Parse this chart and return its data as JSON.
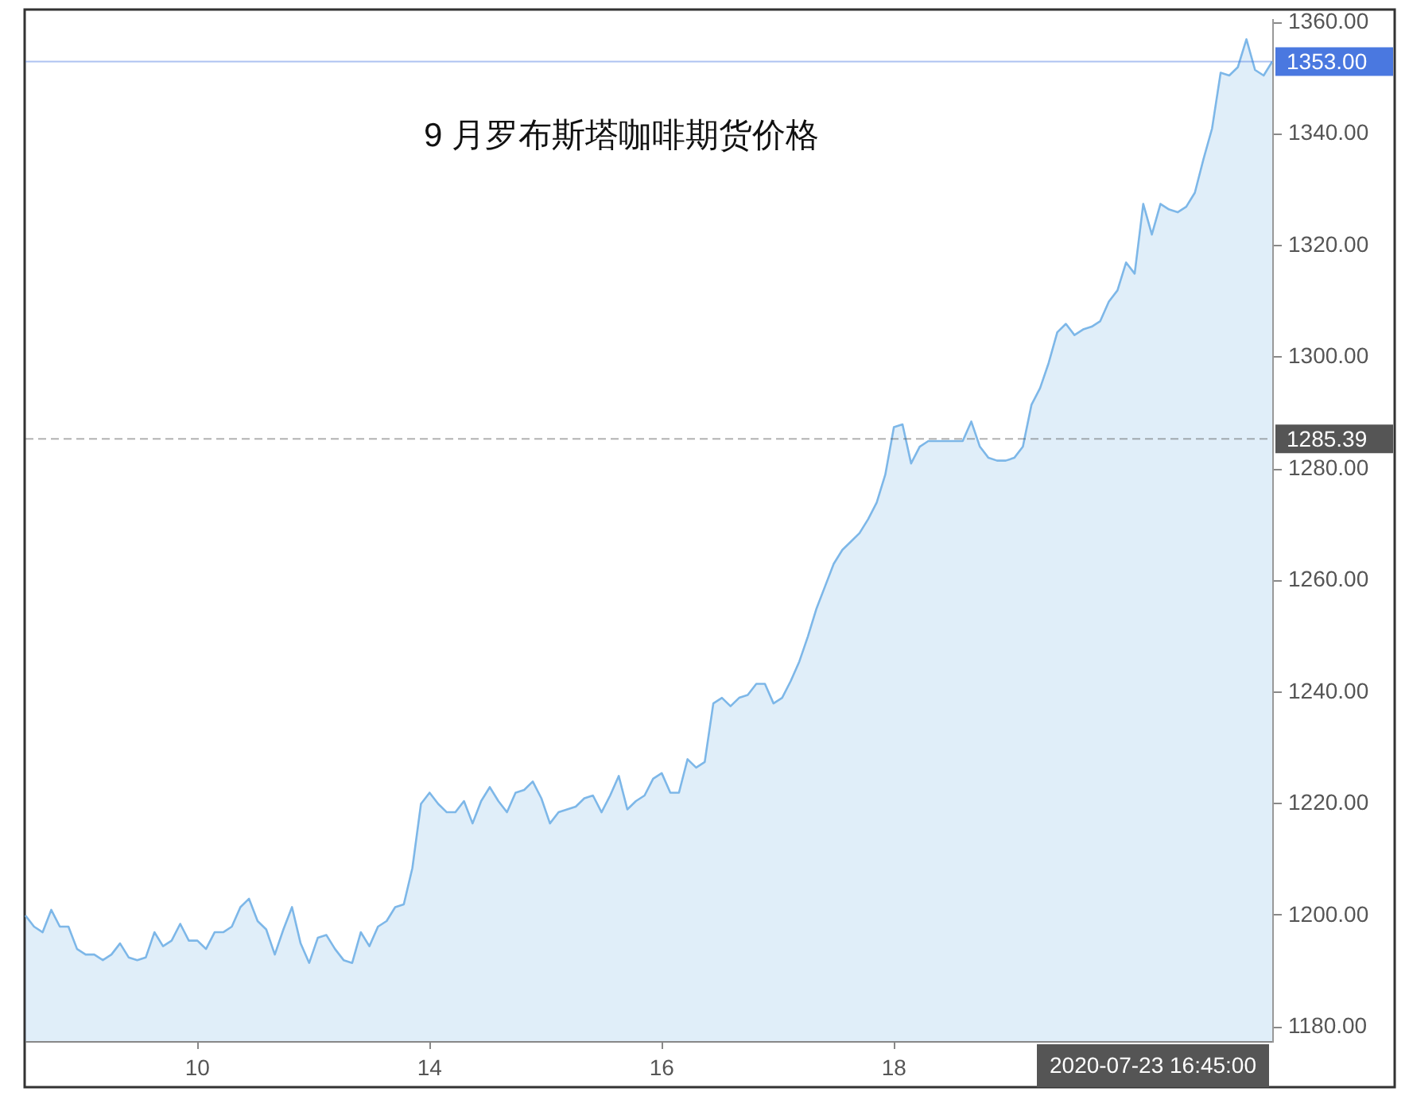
{
  "chart_data": {
    "type": "area",
    "title": "9 月罗布斯塔咖啡期货价格",
    "categories": [
      null,
      null,
      null,
      null,
      null,
      null,
      null,
      null,
      null,
      null,
      null,
      null,
      null,
      null,
      null,
      null,
      null,
      null,
      null,
      null,
      "10",
      null,
      null,
      null,
      null,
      null,
      null,
      null,
      null,
      null,
      null,
      null,
      null,
      null,
      null,
      null,
      null,
      null,
      null,
      null,
      null,
      null,
      null,
      null,
      null,
      null,
      null,
      "14",
      null,
      null,
      null,
      null,
      null,
      null,
      null,
      null,
      null,
      null,
      null,
      null,
      null,
      null,
      null,
      null,
      null,
      null,
      null,
      null,
      null,
      null,
      null,
      null,
      null,
      null,
      "16",
      null,
      null,
      null,
      null,
      null,
      null,
      null,
      null,
      null,
      null,
      null,
      null,
      null,
      null,
      null,
      null,
      null,
      null,
      null,
      null,
      null,
      null,
      null,
      null,
      null,
      null,
      "18",
      null,
      null,
      null,
      null,
      null,
      null,
      null,
      null,
      null,
      null,
      null,
      null,
      null,
      null,
      null,
      null,
      null,
      null,
      null,
      null,
      null,
      null,
      null,
      null,
      null,
      null,
      null,
      null,
      null,
      null,
      null,
      null,
      null,
      null,
      null,
      null,
      null,
      null,
      null,
      null,
      null,
      null,
      null,
      null
    ],
    "values": [
      1200,
      1198,
      1197,
      1201,
      1198,
      1198,
      1194,
      1193,
      1193,
      1192,
      1193,
      1195,
      1192.5,
      1192,
      1192.5,
      1197,
      1194.5,
      1195.5,
      1198.5,
      1195.5,
      1195.5,
      1194,
      1197,
      1197,
      1198,
      1201.5,
      1203,
      1199,
      1197.5,
      1193,
      1197.5,
      1201.5,
      1195,
      1191.5,
      1196,
      1196.5,
      1194,
      1192,
      1191.5,
      1197,
      1194.5,
      1198,
      1199,
      1201.5,
      1202,
      1208.5,
      1220,
      1222,
      1220,
      1218.5,
      1218.5,
      1220.5,
      1216.5,
      1220.5,
      1223,
      1220.5,
      1218.5,
      1222,
      1222.5,
      1224,
      1221,
      1216.5,
      1218.5,
      1219,
      1219.5,
      1221,
      1221.5,
      1218.5,
      1221.5,
      1225,
      1219,
      1220.5,
      1221.5,
      1224.5,
      1225.5,
      1222,
      1222,
      1228,
      1226.5,
      1227.5,
      1238,
      1239,
      1237.5,
      1239,
      1239.5,
      1241.5,
      1241.5,
      1238,
      1239,
      1242,
      1245.5,
      1250,
      1255,
      1259,
      1263,
      1265.5,
      1267,
      1268.5,
      1271,
      1274,
      1279,
      1287.5,
      1288,
      1281,
      1284,
      1285,
      1285,
      1285,
      1285,
      1285,
      1288.5,
      1284,
      1282,
      1281.5,
      1281.5,
      1282,
      1284,
      1291.5,
      1294.5,
      1299,
      1304.5,
      1306,
      1304,
      1305,
      1305.5,
      1306.5,
      1310,
      1312,
      1317,
      1315,
      1327.5,
      1322,
      1327.5,
      1326.5,
      1326,
      1327,
      1329.5,
      1335.5,
      1341,
      1351,
      1350.5,
      1352,
      1357,
      1351.5,
      1350.5,
      1353
    ],
    "color": "#7db7e8",
    "ylim": [
      1177.5,
      1360.5
    ],
    "yticks": [
      {
        "value": 1180,
        "label": "1180.00"
      },
      {
        "value": 1200,
        "label": "1200.00"
      },
      {
        "value": 1220,
        "label": "1220.00"
      },
      {
        "value": 1240,
        "label": "1240.00"
      },
      {
        "value": 1260,
        "label": "1260.00"
      },
      {
        "value": 1280,
        "label": "1280.00"
      },
      {
        "value": 1300,
        "label": "1300.00"
      },
      {
        "value": 1320,
        "label": "1320.00"
      },
      {
        "value": 1340,
        "label": "1340.00"
      },
      {
        "value": 1360,
        "label": "1360.00"
      }
    ],
    "ref_lines": [
      {
        "axis": "y",
        "value": 1353,
        "label": "1353.00",
        "color": "#4a78e0",
        "line_style": "solid"
      },
      {
        "axis": "y",
        "value": 1285.39,
        "label": "1285.39",
        "color": "#555555",
        "line_style": "dashed"
      }
    ],
    "annotations": [
      "2020-07-23 16:45:00"
    ]
  }
}
